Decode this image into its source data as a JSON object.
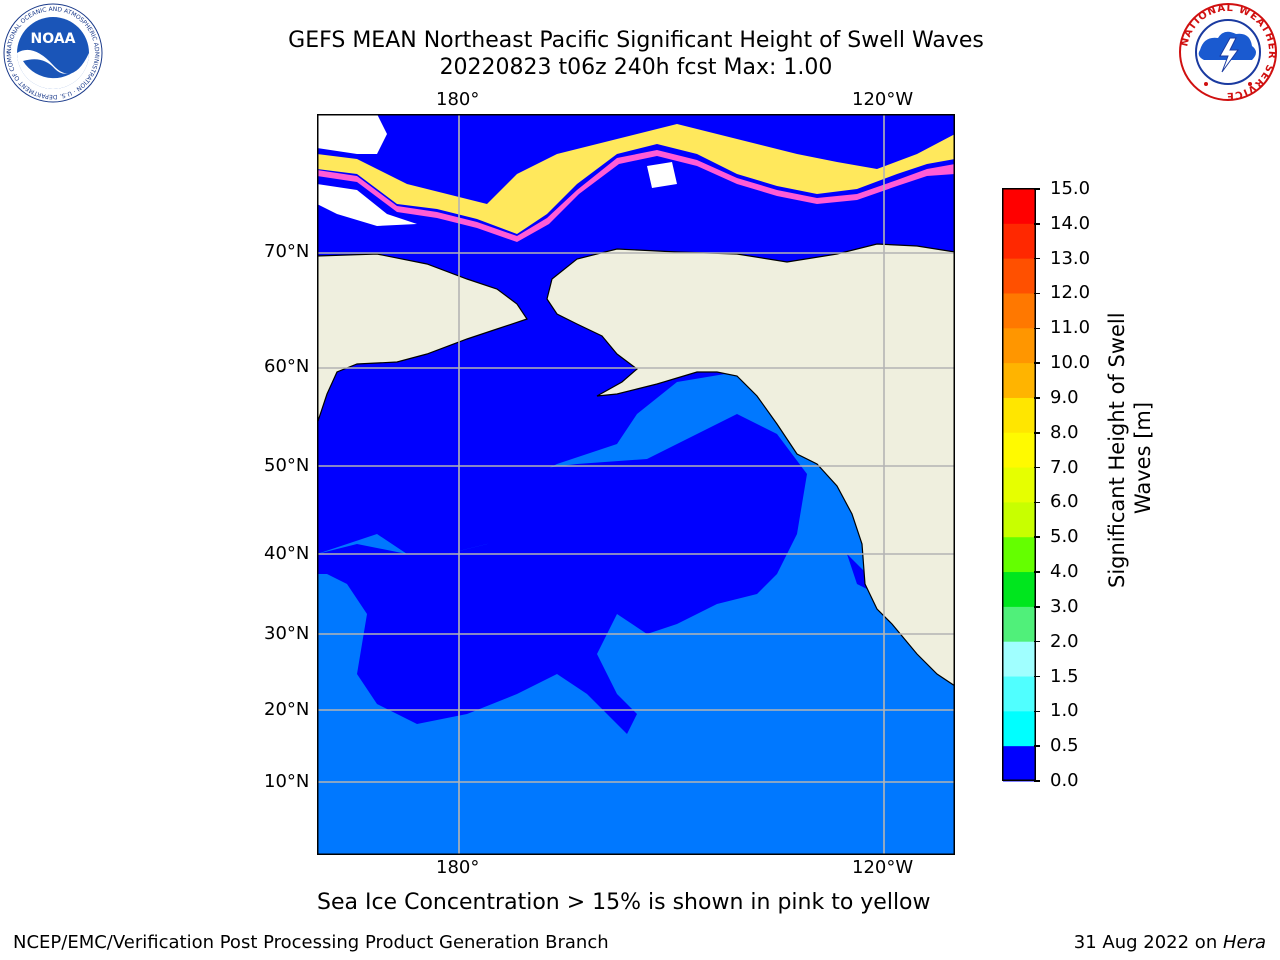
{
  "title": {
    "line1": "GEFS MEAN Northeast Pacific Significant Height of Swell Waves",
    "line2": "20220823 t06z 240h fcst   Max: 1.00"
  },
  "map": {
    "top_lon_labels": [
      "180°",
      "120°W"
    ],
    "bottom_lon_labels": [
      "180°",
      "120°W"
    ],
    "lat_labels": [
      "70°N",
      "60°N",
      "50°N",
      "40°N",
      "30°N",
      "20°N",
      "10°N"
    ],
    "colors": {
      "ocean_low": "#0000ff",
      "ocean_mid": "#0078ff",
      "land": "#efefde",
      "ice_pink": "#ff5cd6",
      "ice_yellow": "#ffe85c"
    }
  },
  "colorbar": {
    "label": "Significant Height of Swell Waves [m]",
    "label_line1": "Significant Height of Swell",
    "label_line2": "Waves [m]",
    "ticks": [
      "15.0",
      "14.0",
      "13.0",
      "12.0",
      "11.0",
      "10.0",
      "9.0",
      "8.0",
      "7.0",
      "6.0",
      "5.0",
      "4.0",
      "3.0",
      "2.0",
      "1.5",
      "1.0",
      "0.5",
      "0.0"
    ],
    "colors_top_to_bottom": [
      "#ff0000",
      "#ff2800",
      "#ff5000",
      "#ff7800",
      "#ff9600",
      "#ffb400",
      "#ffe600",
      "#fffa00",
      "#e6ff00",
      "#c8ff00",
      "#64ff00",
      "#00e61e",
      "#50f07a",
      "#a0ffff",
      "#50ffff",
      "#00ffff",
      "#0078ff",
      "#0000ff"
    ]
  },
  "caption": "Sea Ice Concentration > 15% is shown in pink to yellow",
  "footer": {
    "left": "NCEP/EMC/Verification Post Processing Product Generation Branch",
    "right_prefix": "31 Aug 2022 on ",
    "right_host": "Hera"
  },
  "logos": {
    "noaa_text": "NOAA",
    "noaa_ring": "NATIONAL OCEANIC AND ATMOSPHERIC ADMINISTRATION · U.S. DEPARTMENT OF COMMERCE",
    "nws_ring": "NATIONAL WEATHER SERVICE"
  }
}
